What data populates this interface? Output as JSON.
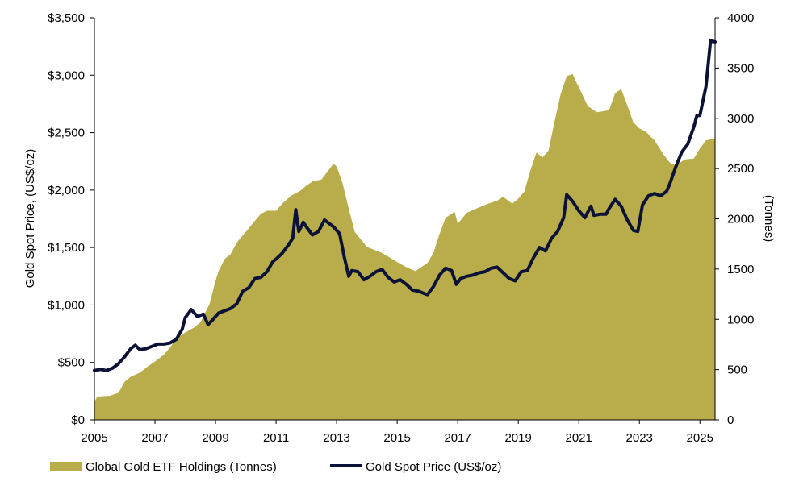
{
  "chart_data": {
    "type": "area+line",
    "title": "",
    "xlabel": "",
    "ylabel_left": "Gold Spot Price, (US$/oz)",
    "ylabel_right": "(Tonnes)",
    "xlim": [
      2005,
      2025.5
    ],
    "ylim_left": [
      0,
      3500
    ],
    "ylim_right": [
      0,
      4000
    ],
    "x_ticks": [
      "2005",
      "2007",
      "2009",
      "2011",
      "2013",
      "2015",
      "2017",
      "2019",
      "2021",
      "2023",
      "2025"
    ],
    "y_left_ticks": [
      "$0",
      "$500",
      "$1,000",
      "$1,500",
      "$2,000",
      "$2,500",
      "$3,000",
      "$3,500"
    ],
    "y_right_ticks": [
      "0",
      "500",
      "1000",
      "1500",
      "2000",
      "2500",
      "3000",
      "3500",
      "4000"
    ],
    "legend_position": "bottom",
    "grid": false,
    "series": [
      {
        "name": "Global Gold ETF Holdings (Tonnes)",
        "type": "area",
        "axis": "right",
        "color": "#b9ac4b",
        "x": [
          2005.0,
          2005.1,
          2005.2,
          2005.5,
          2005.8,
          2006.0,
          2006.2,
          2006.5,
          2006.8,
          2007.0,
          2007.3,
          2007.5,
          2007.7,
          2008.0,
          2008.3,
          2008.5,
          2008.8,
          2009.0,
          2009.1,
          2009.2,
          2009.3,
          2009.5,
          2009.7,
          2009.8,
          2010.0,
          2010.3,
          2010.5,
          2010.7,
          2011.0,
          2011.2,
          2011.5,
          2011.8,
          2012.0,
          2012.2,
          2012.5,
          2012.7,
          2012.9,
          2013.0,
          2013.2,
          2013.4,
          2013.6,
          2014.0,
          2014.5,
          2015.0,
          2015.3,
          2015.6,
          2016.0,
          2016.2,
          2016.4,
          2016.6,
          2016.9,
          2017.0,
          2017.3,
          2017.6,
          2018.0,
          2018.3,
          2018.5,
          2018.8,
          2019.0,
          2019.2,
          2019.4,
          2019.6,
          2019.8,
          2020.0,
          2020.2,
          2020.4,
          2020.6,
          2020.8,
          2020.9,
          2021.0,
          2021.3,
          2021.6,
          2022.0,
          2022.2,
          2022.4,
          2022.6,
          2022.8,
          2023.0,
          2023.2,
          2023.5,
          2023.8,
          2024.0,
          2024.2,
          2024.5,
          2024.8,
          2025.0,
          2025.2,
          2025.5
        ],
        "values": [
          180,
          235,
          235,
          240,
          270,
          380,
          430,
          470,
          540,
          580,
          650,
          720,
          810,
          870,
          920,
          970,
          1150,
          1380,
          1480,
          1540,
          1600,
          1650,
          1760,
          1800,
          1870,
          1980,
          2050,
          2080,
          2080,
          2150,
          2230,
          2280,
          2330,
          2370,
          2390,
          2470,
          2550,
          2520,
          2350,
          2100,
          1870,
          1720,
          1660,
          1570,
          1520,
          1480,
          1560,
          1660,
          1850,
          2010,
          2070,
          1950,
          2060,
          2100,
          2150,
          2180,
          2220,
          2150,
          2200,
          2270,
          2480,
          2660,
          2610,
          2680,
          2970,
          3240,
          3420,
          3440,
          3370,
          3310,
          3120,
          3060,
          3080,
          3250,
          3290,
          3130,
          2960,
          2900,
          2870,
          2780,
          2640,
          2560,
          2530,
          2590,
          2600,
          2700,
          2780,
          2800
        ]
      },
      {
        "name": "Gold Spot Price (US$/oz)",
        "type": "line",
        "axis": "left",
        "color": "#0b1236",
        "x": [
          2005.0,
          2005.2,
          2005.4,
          2005.6,
          2005.8,
          2006.0,
          2006.2,
          2006.35,
          2006.5,
          2006.7,
          2006.9,
          2007.1,
          2007.3,
          2007.5,
          2007.7,
          2007.9,
          2008.0,
          2008.2,
          2008.4,
          2008.6,
          2008.75,
          2008.9,
          2009.1,
          2009.3,
          2009.5,
          2009.7,
          2009.9,
          2010.1,
          2010.3,
          2010.5,
          2010.7,
          2010.9,
          2011.0,
          2011.2,
          2011.4,
          2011.55,
          2011.65,
          2011.75,
          2011.9,
          2012.0,
          2012.2,
          2012.4,
          2012.6,
          2012.75,
          2012.9,
          2013.1,
          2013.25,
          2013.4,
          2013.5,
          2013.7,
          2013.9,
          2014.1,
          2014.3,
          2014.5,
          2014.7,
          2014.9,
          2015.1,
          2015.3,
          2015.5,
          2015.7,
          2015.9,
          2016.0,
          2016.2,
          2016.4,
          2016.6,
          2016.8,
          2016.95,
          2017.1,
          2017.3,
          2017.5,
          2017.7,
          2017.9,
          2018.1,
          2018.3,
          2018.5,
          2018.7,
          2018.9,
          2019.1,
          2019.3,
          2019.5,
          2019.7,
          2019.9,
          2020.1,
          2020.3,
          2020.5,
          2020.6,
          2020.8,
          2021.0,
          2021.2,
          2021.4,
          2021.5,
          2021.7,
          2021.9,
          2022.0,
          2022.2,
          2022.4,
          2022.6,
          2022.8,
          2022.95,
          2023.1,
          2023.3,
          2023.5,
          2023.7,
          2023.9,
          2024.0,
          2024.2,
          2024.4,
          2024.6,
          2024.8,
          2024.9,
          2025.0,
          2025.2,
          2025.35,
          2025.5
        ],
        "values": [
          430,
          440,
          430,
          450,
          490,
          550,
          620,
          650,
          610,
          620,
          640,
          660,
          660,
          670,
          700,
          790,
          890,
          960,
          900,
          920,
          830,
          870,
          930,
          950,
          970,
          1010,
          1120,
          1150,
          1230,
          1240,
          1290,
          1380,
          1400,
          1450,
          1520,
          1580,
          1830,
          1640,
          1720,
          1680,
          1610,
          1640,
          1740,
          1710,
          1680,
          1620,
          1420,
          1250,
          1300,
          1290,
          1220,
          1250,
          1290,
          1310,
          1240,
          1200,
          1220,
          1180,
          1130,
          1120,
          1100,
          1090,
          1160,
          1260,
          1320,
          1300,
          1180,
          1230,
          1250,
          1260,
          1280,
          1290,
          1320,
          1330,
          1280,
          1230,
          1210,
          1290,
          1300,
          1410,
          1500,
          1470,
          1580,
          1640,
          1760,
          1960,
          1900,
          1820,
          1760,
          1860,
          1780,
          1790,
          1790,
          1840,
          1920,
          1860,
          1740,
          1650,
          1640,
          1870,
          1950,
          1970,
          1950,
          1990,
          2050,
          2200,
          2330,
          2400,
          2550,
          2650,
          2650,
          2900,
          3300,
          3290
        ]
      }
    ]
  }
}
